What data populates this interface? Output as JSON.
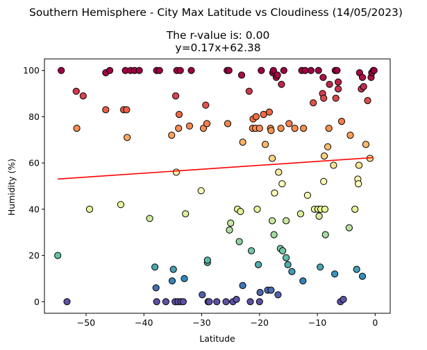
{
  "chart_data": {
    "type": "scatter",
    "title": "Southern Hemisphere - City Max Latitude vs Cloudiness (14/05/2023)",
    "subtitle_line1": "The r-value is: 0.00",
    "subtitle_line2": "y=0.17x+62.38",
    "xlabel": "Latitude",
    "ylabel": "Humidity (%)",
    "xlim": [
      -57.2,
      2.6
    ],
    "ylim": [
      -5,
      105
    ],
    "xticks": [
      -50,
      -40,
      -30,
      -20,
      -10,
      0
    ],
    "yticks": [
      0,
      20,
      40,
      60,
      80,
      100
    ],
    "grid": false,
    "colormap": "Spectral",
    "point_edge_color": "#000000",
    "regression": {
      "slope": 0.17,
      "intercept": 62.38,
      "x_range": [
        -54.9,
        -0.3
      ],
      "color": "#ff0000"
    },
    "points": [
      [
        -54.3,
        100
      ],
      [
        -51.7,
        91
      ],
      [
        -50.5,
        89
      ],
      [
        -51.6,
        75
      ],
      [
        -49.4,
        40
      ],
      [
        -54.9,
        20
      ],
      [
        -53.3,
        0
      ],
      [
        -46.6,
        99
      ],
      [
        -45.9,
        100
      ],
      [
        -44.0,
        42
      ],
      [
        -43.5,
        83
      ],
      [
        -43.0,
        83
      ],
      [
        -46.6,
        83
      ],
      [
        -42.9,
        71
      ],
      [
        -43.2,
        100
      ],
      [
        -42.3,
        100
      ],
      [
        -41.6,
        100
      ],
      [
        -40.8,
        100
      ],
      [
        -39.0,
        36
      ],
      [
        -38.1,
        15
      ],
      [
        -37.9,
        6
      ],
      [
        -37.8,
        0
      ],
      [
        -37.8,
        100
      ],
      [
        -37.3,
        100
      ],
      [
        -36.2,
        0
      ],
      [
        -35.2,
        72
      ],
      [
        -35.1,
        9
      ],
      [
        -34.9,
        14
      ],
      [
        -34.6,
        0
      ],
      [
        -34.5,
        89
      ],
      [
        -34.4,
        56
      ],
      [
        -34.3,
        100
      ],
      [
        -34.1,
        0
      ],
      [
        -34.0,
        75
      ],
      [
        -33.9,
        81
      ],
      [
        -33.7,
        100
      ],
      [
        -33.6,
        0
      ],
      [
        -33.2,
        0
      ],
      [
        -33.0,
        10
      ],
      [
        -32.8,
        38
      ],
      [
        -32.1,
        76
      ],
      [
        -31.8,
        100
      ],
      [
        -30.1,
        48
      ],
      [
        -29.9,
        3
      ],
      [
        -29.7,
        75
      ],
      [
        -29.3,
        85
      ],
      [
        -29.1,
        77
      ],
      [
        -29.0,
        17
      ],
      [
        -29.0,
        18
      ],
      [
        -28.9,
        0
      ],
      [
        -28.7,
        0
      ],
      [
        -27.4,
        0
      ],
      [
        -25.8,
        0
      ],
      [
        -25.6,
        100
      ],
      [
        -25.5,
        77
      ],
      [
        -25.3,
        100
      ],
      [
        -25.2,
        31
      ],
      [
        -25.0,
        34
      ],
      [
        -24.6,
        0
      ],
      [
        -24.0,
        1
      ],
      [
        -23.8,
        40
      ],
      [
        -23.5,
        26
      ],
      [
        -23.3,
        39
      ],
      [
        -23.1,
        98
      ],
      [
        -22.9,
        7
      ],
      [
        -22.9,
        69
      ],
      [
        -21.8,
        91
      ],
      [
        -21.6,
        0
      ],
      [
        -21.4,
        22
      ],
      [
        -21.2,
        75
      ],
      [
        -21.1,
        79
      ],
      [
        -20.7,
        75
      ],
      [
        -20.6,
        80
      ],
      [
        -20.4,
        40
      ],
      [
        -20.2,
        16
      ],
      [
        -20.0,
        75
      ],
      [
        -20.0,
        0
      ],
      [
        -19.9,
        4
      ],
      [
        -19.7,
        100
      ],
      [
        -19.3,
        81
      ],
      [
        -19.0,
        68
      ],
      [
        -18.6,
        5
      ],
      [
        -18.3,
        82
      ],
      [
        -18.1,
        75
      ],
      [
        -18.0,
        5
      ],
      [
        -18.0,
        74
      ],
      [
        -17.8,
        35
      ],
      [
        -17.8,
        62
      ],
      [
        -17.7,
        99
      ],
      [
        -17.6,
        100
      ],
      [
        -17.5,
        29
      ],
      [
        -17.4,
        47
      ],
      [
        -17.1,
        97
      ],
      [
        -16.9,
        98
      ],
      [
        -16.8,
        3
      ],
      [
        -16.7,
        56
      ],
      [
        -16.4,
        23
      ],
      [
        -16.3,
        75
      ],
      [
        -16.2,
        94
      ],
      [
        -16.1,
        51
      ],
      [
        -16.0,
        22
      ],
      [
        -15.8,
        100
      ],
      [
        -15.4,
        19
      ],
      [
        -15.4,
        35
      ],
      [
        -15.1,
        16
      ],
      [
        -14.9,
        77
      ],
      [
        -14.4,
        13
      ],
      [
        -13.9,
        75
      ],
      [
        -12.9,
        38
      ],
      [
        -12.7,
        100
      ],
      [
        -12.5,
        9
      ],
      [
        -12.4,
        75
      ],
      [
        -12.1,
        100
      ],
      [
        -11.7,
        46
      ],
      [
        -11.1,
        100
      ],
      [
        -10.7,
        86
      ],
      [
        -10.5,
        40
      ],
      [
        -9.9,
        40
      ],
      [
        -9.8,
        100
      ],
      [
        -9.7,
        37
      ],
      [
        -9.5,
        15
      ],
      [
        -9.4,
        40
      ],
      [
        -9.1,
        90
      ],
      [
        -9.0,
        97
      ],
      [
        -8.9,
        52
      ],
      [
        -8.9,
        88
      ],
      [
        -8.8,
        63
      ],
      [
        -8.7,
        40
      ],
      [
        -8.6,
        29
      ],
      [
        -8.2,
        67
      ],
      [
        -8.0,
        75
      ],
      [
        -7.9,
        94
      ],
      [
        -7.2,
        59
      ],
      [
        -7.0,
        12
      ],
      [
        -6.9,
        100
      ],
      [
        -6.8,
        88
      ],
      [
        -6.6,
        100
      ],
      [
        -6.4,
        92
      ],
      [
        -6.4,
        95
      ],
      [
        -6.0,
        0
      ],
      [
        -5.8,
        78
      ],
      [
        -5.5,
        1
      ],
      [
        -4.5,
        32
      ],
      [
        -4.3,
        72
      ],
      [
        -3.5,
        40
      ],
      [
        -3.2,
        14
      ],
      [
        -3.0,
        53
      ],
      [
        -2.9,
        51
      ],
      [
        -2.8,
        59
      ],
      [
        -2.7,
        99
      ],
      [
        -2.4,
        92
      ],
      [
        -2.2,
        11
      ],
      [
        -2.2,
        97
      ],
      [
        -2.0,
        93
      ],
      [
        -1.6,
        68
      ],
      [
        -1.3,
        87
      ],
      [
        -0.9,
        62
      ],
      [
        -0.7,
        97
      ],
      [
        -0.6,
        99
      ],
      [
        -0.3,
        100
      ],
      [
        -0.2,
        100
      ]
    ]
  }
}
